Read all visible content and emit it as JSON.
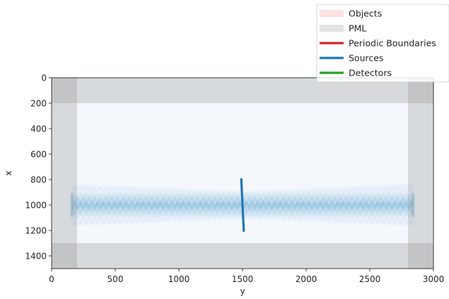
{
  "chart_data": {
    "type": "heatmap",
    "xlabel": "y",
    "ylabel": "x",
    "xlim": [
      0,
      3000
    ],
    "ylim": [
      1500,
      0
    ],
    "y_axis_inverted": true,
    "xticks": [
      0,
      500,
      1000,
      1500,
      2000,
      2500,
      3000
    ],
    "yticks": [
      0,
      200,
      400,
      600,
      800,
      1000,
      1200,
      1400
    ],
    "grid": false,
    "legend_placement": "top-right, outside plot",
    "legend": [
      {
        "label": "Objects",
        "kind": "patch",
        "color": "#fde0e0"
      },
      {
        "label": "PML",
        "kind": "patch",
        "color": "#e3e3e3"
      },
      {
        "label": "Periodic Boundaries",
        "kind": "line",
        "color": "#d62728"
      },
      {
        "label": "Sources",
        "kind": "line",
        "color": "#1f77b4"
      },
      {
        "label": "Detectors",
        "kind": "line",
        "color": "#2ca02c"
      }
    ],
    "field": {
      "colormap": "Blues",
      "background_color": "#f4f8fd",
      "beam_center_x": 1000,
      "beam_half_width_at_source": 100,
      "beam_half_width_at_edges": 80,
      "beam_y_range": [
        160,
        2840
      ],
      "interference_fringes": true
    },
    "pml_regions": [
      {
        "y_range": [
          0,
          200
        ],
        "x_range": [
          0,
          1500
        ]
      },
      {
        "y_range": [
          2800,
          3000
        ],
        "x_range": [
          0,
          1500
        ]
      },
      {
        "y_range": [
          0,
          3000
        ],
        "x_range": [
          0,
          200
        ]
      },
      {
        "y_range": [
          0,
          3000
        ],
        "x_range": [
          1300,
          1500
        ]
      }
    ],
    "sources": [
      {
        "y_start": 1490,
        "x_start": 790,
        "y_end": 1510,
        "x_end": 1210,
        "color": "#1f77b4"
      }
    ]
  }
}
